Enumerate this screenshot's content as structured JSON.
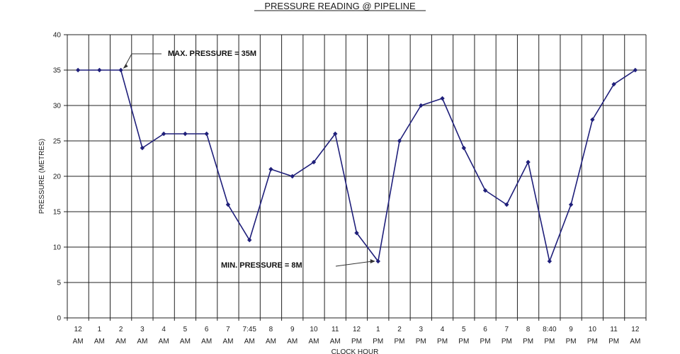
{
  "chart_data": {
    "type": "line",
    "title": "PRESSURE READING @ PIPELINE",
    "xlabel": "CLOCK HOUR",
    "ylabel": "PRESSURE (METRES)",
    "ylim": [
      0,
      40
    ],
    "yticks": [
      0,
      5,
      10,
      15,
      20,
      25,
      30,
      35,
      40
    ],
    "grid": true,
    "categories": [
      [
        "12",
        "AM"
      ],
      [
        "1",
        "AM"
      ],
      [
        "2",
        "AM"
      ],
      [
        "3",
        "AM"
      ],
      [
        "4",
        "AM"
      ],
      [
        "5",
        "AM"
      ],
      [
        "6",
        "AM"
      ],
      [
        "7",
        "AM"
      ],
      [
        "7:45",
        "AM"
      ],
      [
        "8",
        "AM"
      ],
      [
        "9",
        "AM"
      ],
      [
        "10",
        "AM"
      ],
      [
        "11",
        "AM"
      ],
      [
        "12",
        "PM"
      ],
      [
        "1",
        "PM"
      ],
      [
        "2",
        "PM"
      ],
      [
        "3",
        "PM"
      ],
      [
        "4",
        "PM"
      ],
      [
        "5",
        "PM"
      ],
      [
        "6",
        "PM"
      ],
      [
        "7",
        "PM"
      ],
      [
        "8",
        "PM"
      ],
      [
        "8:40",
        "PM"
      ],
      [
        "9",
        "PM"
      ],
      [
        "10",
        "PM"
      ],
      [
        "11",
        "PM"
      ],
      [
        "12",
        "AM"
      ]
    ],
    "series": [
      {
        "values": [
          35,
          35,
          35,
          24,
          26,
          26,
          26,
          16,
          11,
          21,
          20,
          22,
          26,
          12,
          8,
          25,
          30,
          31,
          24,
          18,
          16,
          22,
          8,
          16,
          28,
          33,
          35
        ]
      }
    ],
    "annotations": [
      {
        "text": "MAX. PRESSURE = 35M",
        "category_index": 2,
        "value": 35
      },
      {
        "text": "MIN. PRESSURE = 8M",
        "category_index": 14,
        "value": 8
      }
    ],
    "colors": {
      "line": "#1f1f7a",
      "grid": "#222222",
      "text": "#1c1c1c"
    }
  }
}
